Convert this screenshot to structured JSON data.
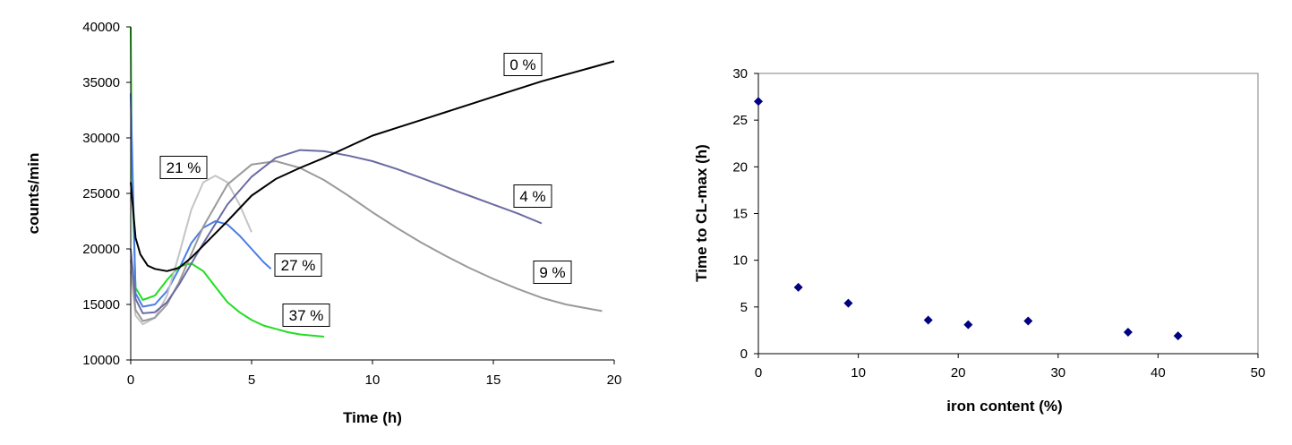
{
  "chart_data": [
    {
      "type": "line",
      "title": "",
      "xlabel": "Time (h)",
      "ylabel": "counts/min",
      "xlim": [
        0,
        20
      ],
      "ylim": [
        10000,
        40000
      ],
      "xticks": [
        0,
        5,
        10,
        15,
        20
      ],
      "yticks": [
        10000,
        15000,
        20000,
        25000,
        30000,
        35000,
        40000
      ],
      "grid": false,
      "series": [
        {
          "name": "0 %",
          "color": "#000000",
          "x": [
            0,
            0.1,
            0.2,
            0.4,
            0.7,
            1,
            1.5,
            2,
            2.5,
            3,
            4,
            5,
            6,
            7,
            8,
            9,
            10,
            11,
            12,
            13,
            14,
            15,
            16,
            17,
            18,
            19,
            20
          ],
          "y": [
            26000,
            23500,
            21000,
            19500,
            18500,
            18200,
            18000,
            18300,
            19200,
            20300,
            22500,
            24800,
            26300,
            27300,
            28200,
            29200,
            30200,
            30900,
            31600,
            32300,
            33000,
            33700,
            34400,
            35100,
            35700,
            36300,
            36900
          ]
        },
        {
          "name": "4 %",
          "color": "#6b6ba3",
          "x": [
            0,
            0.2,
            0.5,
            1,
            1.5,
            2,
            3,
            4,
            5,
            6,
            7,
            8,
            9,
            10,
            11,
            12,
            13,
            14,
            15,
            16,
            17
          ],
          "y": [
            20000,
            15500,
            14200,
            14300,
            15200,
            16800,
            20500,
            24000,
            26500,
            28200,
            28900,
            28800,
            28400,
            27900,
            27200,
            26400,
            25600,
            24800,
            24000,
            23200,
            22300
          ]
        },
        {
          "name": "9 %",
          "color": "#9a9a9a",
          "x": [
            0,
            0.2,
            0.5,
            1,
            1.5,
            2,
            3,
            4,
            5,
            6,
            7,
            8,
            9,
            10,
            11,
            12,
            13,
            14,
            15,
            16,
            17,
            18,
            19,
            19.5
          ],
          "y": [
            19000,
            14500,
            13500,
            13800,
            15000,
            17000,
            22000,
            25800,
            27600,
            27900,
            27300,
            26200,
            24800,
            23300,
            21900,
            20600,
            19400,
            18300,
            17300,
            16400,
            15600,
            15000,
            14600,
            14400
          ]
        },
        {
          "name": "21 %",
          "color": "#c4c4c4",
          "x": [
            0,
            0.2,
            0.5,
            1,
            1.5,
            2,
            2.5,
            3,
            3.5,
            4,
            4.5,
            5
          ],
          "y": [
            18000,
            14000,
            13200,
            13800,
            15800,
            19500,
            23500,
            26000,
            26600,
            26000,
            24000,
            21500
          ]
        },
        {
          "name": "27 %",
          "color": "#4a7ee8",
          "x": [
            0,
            0.2,
            0.5,
            1,
            1.5,
            2,
            2.5,
            3,
            3.5,
            4,
            4.5,
            5,
            5.5,
            5.8
          ],
          "y": [
            34000,
            16000,
            14800,
            15000,
            16200,
            18200,
            20500,
            21900,
            22500,
            22200,
            21200,
            20000,
            18800,
            18200
          ]
        },
        {
          "name": "37 %",
          "color": "#22dd22",
          "x": [
            0,
            0.05,
            0.2,
            0.5,
            1,
            1.5,
            2,
            2.5,
            3,
            3.5,
            4,
            4.5,
            5,
            5.5,
            6,
            6.5,
            7,
            7.5,
            8
          ],
          "y": [
            40000,
            27000,
            16500,
            15400,
            15800,
            17200,
            18400,
            18700,
            18000,
            16600,
            15200,
            14300,
            13600,
            13100,
            12800,
            12500,
            12300,
            12200,
            12100
          ]
        }
      ],
      "annotations": [
        {
          "text": "0 %",
          "series": "0 %"
        },
        {
          "text": "4 %",
          "series": "4 %"
        },
        {
          "text": "9 %",
          "series": "9 %"
        },
        {
          "text": "21 %",
          "series": "21 %"
        },
        {
          "text": "27 %",
          "series": "27 %"
        },
        {
          "text": "37 %",
          "series": "37 %"
        }
      ]
    },
    {
      "type": "scatter",
      "title": "",
      "xlabel": "iron content (%)",
      "ylabel": "Time to CL-max (h)",
      "xlim": [
        0,
        50
      ],
      "ylim": [
        0,
        30
      ],
      "xticks": [
        0,
        10,
        20,
        30,
        40,
        50
      ],
      "yticks": [
        0,
        5,
        10,
        15,
        20,
        25,
        30
      ],
      "grid": false,
      "marker_color": "#000080",
      "points": [
        {
          "x": 0,
          "y": 27
        },
        {
          "x": 4,
          "y": 7.1
        },
        {
          "x": 9,
          "y": 5.4
        },
        {
          "x": 17,
          "y": 3.6
        },
        {
          "x": 21,
          "y": 3.1
        },
        {
          "x": 27,
          "y": 3.5
        },
        {
          "x": 37,
          "y": 2.3
        },
        {
          "x": 42,
          "y": 1.9
        }
      ]
    }
  ]
}
